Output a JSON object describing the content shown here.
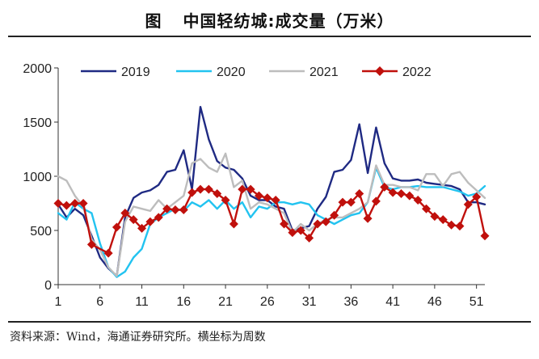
{
  "header": {
    "figure_label": "图",
    "title": "中国轻纺城:成交量（万米）"
  },
  "footer": {
    "source": "资料来源：Wind，海通证券研究所。横坐标为周数"
  },
  "colors": {
    "s2019": "#1f2a83",
    "s2020": "#22c3f0",
    "s2021": "#bdbdbd",
    "s2022": "#c0100c"
  },
  "chart_data": {
    "type": "line",
    "title": "中国轻纺城:成交量（万米）",
    "xlabel": "",
    "ylabel": "",
    "xlim": [
      1,
      52
    ],
    "ylim": [
      0,
      2000
    ],
    "x_ticks": [
      1,
      6,
      11,
      16,
      21,
      26,
      31,
      36,
      41,
      46,
      51
    ],
    "y_ticks": [
      0,
      500,
      1000,
      1500,
      2000
    ],
    "grid": false,
    "legend_position": "top",
    "series": [
      {
        "name": "2019",
        "color": "#1f2a83",
        "marker": "none",
        "points": [
          [
            1,
            740
          ],
          [
            2,
            620
          ],
          [
            3,
            700
          ],
          [
            4,
            640
          ],
          [
            5,
            450
          ],
          [
            6,
            250
          ],
          [
            7,
            150
          ],
          [
            8,
            80
          ],
          [
            9,
            620
          ],
          [
            10,
            800
          ],
          [
            11,
            850
          ],
          [
            12,
            870
          ],
          [
            13,
            920
          ],
          [
            14,
            1040
          ],
          [
            15,
            1060
          ],
          [
            16,
            1240
          ],
          [
            17,
            880
          ],
          [
            18,
            1640
          ],
          [
            19,
            1340
          ],
          [
            20,
            1140
          ],
          [
            21,
            1080
          ],
          [
            22,
            1060
          ],
          [
            23,
            980
          ],
          [
            24,
            820
          ],
          [
            25,
            780
          ],
          [
            26,
            780
          ],
          [
            27,
            720
          ],
          [
            28,
            700
          ],
          [
            29,
            500
          ],
          [
            30,
            520
          ],
          [
            31,
            540
          ],
          [
            32,
            700
          ],
          [
            33,
            810
          ],
          [
            34,
            1040
          ],
          [
            35,
            1060
          ],
          [
            36,
            1150
          ],
          [
            37,
            1480
          ],
          [
            38,
            1030
          ],
          [
            39,
            1450
          ],
          [
            40,
            1120
          ],
          [
            41,
            980
          ],
          [
            42,
            960
          ],
          [
            43,
            960
          ],
          [
            44,
            970
          ],
          [
            45,
            940
          ],
          [
            46,
            930
          ],
          [
            47,
            920
          ],
          [
            48,
            910
          ],
          [
            49,
            880
          ],
          [
            50,
            760
          ],
          [
            51,
            760
          ],
          [
            52,
            740
          ]
        ]
      },
      {
        "name": "2020",
        "color": "#22c3f0",
        "marker": "none",
        "points": [
          [
            1,
            660
          ],
          [
            2,
            600
          ],
          [
            3,
            760
          ],
          [
            4,
            700
          ],
          [
            5,
            660
          ],
          [
            6,
            380
          ],
          [
            7,
            160
          ],
          [
            8,
            70
          ],
          [
            9,
            120
          ],
          [
            10,
            250
          ],
          [
            11,
            330
          ],
          [
            12,
            560
          ],
          [
            13,
            620
          ],
          [
            14,
            660
          ],
          [
            15,
            700
          ],
          [
            16,
            680
          ],
          [
            17,
            760
          ],
          [
            18,
            720
          ],
          [
            19,
            780
          ],
          [
            20,
            700
          ],
          [
            21,
            780
          ],
          [
            22,
            700
          ],
          [
            23,
            760
          ],
          [
            24,
            620
          ],
          [
            25,
            720
          ],
          [
            26,
            700
          ],
          [
            27,
            760
          ],
          [
            28,
            760
          ],
          [
            29,
            740
          ],
          [
            30,
            760
          ],
          [
            31,
            740
          ],
          [
            32,
            640
          ],
          [
            33,
            600
          ],
          [
            34,
            560
          ],
          [
            35,
            600
          ],
          [
            36,
            640
          ],
          [
            37,
            660
          ],
          [
            38,
            760
          ],
          [
            39,
            1080
          ],
          [
            40,
            900
          ],
          [
            41,
            880
          ],
          [
            42,
            900
          ],
          [
            43,
            900
          ],
          [
            44,
            910
          ],
          [
            45,
            900
          ],
          [
            46,
            900
          ],
          [
            47,
            900
          ],
          [
            48,
            880
          ],
          [
            49,
            860
          ],
          [
            50,
            820
          ],
          [
            51,
            840
          ],
          [
            52,
            910
          ]
        ]
      },
      {
        "name": "2021",
        "color": "#bdbdbd",
        "marker": "none",
        "points": [
          [
            1,
            1000
          ],
          [
            2,
            960
          ],
          [
            3,
            820
          ],
          [
            4,
            720
          ],
          [
            5,
            420
          ],
          [
            6,
            320
          ],
          [
            7,
            160
          ],
          [
            8,
            80
          ],
          [
            9,
            580
          ],
          [
            10,
            720
          ],
          [
            11,
            700
          ],
          [
            12,
            680
          ],
          [
            13,
            780
          ],
          [
            14,
            700
          ],
          [
            15,
            760
          ],
          [
            16,
            820
          ],
          [
            17,
            1120
          ],
          [
            18,
            1160
          ],
          [
            19,
            1080
          ],
          [
            20,
            1040
          ],
          [
            21,
            1210
          ],
          [
            22,
            900
          ],
          [
            23,
            960
          ],
          [
            24,
            700
          ],
          [
            25,
            760
          ],
          [
            26,
            740
          ],
          [
            27,
            700
          ],
          [
            28,
            660
          ],
          [
            29,
            480
          ],
          [
            30,
            560
          ],
          [
            31,
            500
          ],
          [
            32,
            560
          ],
          [
            33,
            600
          ],
          [
            34,
            620
          ],
          [
            35,
            620
          ],
          [
            36,
            660
          ],
          [
            37,
            700
          ],
          [
            38,
            760
          ],
          [
            39,
            1100
          ],
          [
            40,
            920
          ],
          [
            41,
            920
          ],
          [
            42,
            900
          ],
          [
            43,
            900
          ],
          [
            44,
            870
          ],
          [
            45,
            1020
          ],
          [
            46,
            1020
          ],
          [
            47,
            910
          ],
          [
            48,
            1020
          ],
          [
            49,
            1040
          ],
          [
            50,
            940
          ],
          [
            51,
            870
          ],
          [
            52,
            800
          ]
        ]
      },
      {
        "name": "2022",
        "color": "#c0100c",
        "marker": "diamond",
        "points": [
          [
            1,
            750
          ],
          [
            2,
            730
          ],
          [
            3,
            750
          ],
          [
            4,
            750
          ],
          [
            5,
            370
          ],
          [
            7,
            290
          ],
          [
            8,
            530
          ],
          [
            9,
            660
          ],
          [
            10,
            600
          ],
          [
            11,
            520
          ],
          [
            12,
            580
          ],
          [
            13,
            620
          ],
          [
            14,
            700
          ],
          [
            15,
            690
          ],
          [
            16,
            690
          ],
          [
            17,
            850
          ],
          [
            18,
            880
          ],
          [
            19,
            880
          ],
          [
            20,
            840
          ],
          [
            21,
            780
          ],
          [
            22,
            560
          ],
          [
            23,
            880
          ],
          [
            24,
            880
          ],
          [
            25,
            820
          ],
          [
            26,
            800
          ],
          [
            27,
            780
          ],
          [
            28,
            560
          ],
          [
            29,
            480
          ],
          [
            30,
            500
          ],
          [
            31,
            430
          ],
          [
            32,
            560
          ],
          [
            33,
            580
          ],
          [
            34,
            640
          ],
          [
            35,
            760
          ],
          [
            36,
            760
          ],
          [
            37,
            840
          ],
          [
            38,
            610
          ],
          [
            39,
            770
          ],
          [
            40,
            900
          ],
          [
            41,
            850
          ],
          [
            42,
            840
          ],
          [
            43,
            820
          ],
          [
            44,
            780
          ],
          [
            45,
            700
          ],
          [
            46,
            630
          ],
          [
            47,
            600
          ],
          [
            48,
            550
          ],
          [
            49,
            540
          ],
          [
            50,
            740
          ],
          [
            51,
            810
          ],
          [
            52,
            450
          ]
        ]
      }
    ]
  }
}
